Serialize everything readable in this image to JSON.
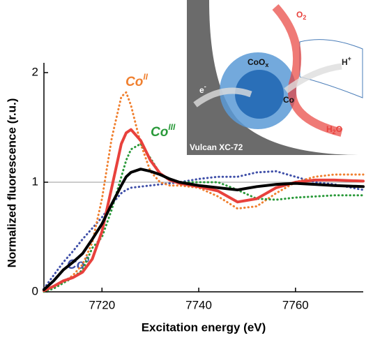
{
  "chart_data": {
    "type": "line",
    "x_label": "Excitation energy (eV)",
    "y_label": "Normalized fluorescence (r.u.)",
    "x": [
      7708,
      7710,
      7712,
      7714,
      7716,
      7718,
      7720,
      7722,
      7724,
      7725,
      7726,
      7728,
      7730,
      7732,
      7734,
      7736,
      7740,
      7744,
      7748,
      7752,
      7756,
      7760,
      7764,
      7768,
      7774
    ],
    "xlim": [
      7708,
      7774
    ],
    "xticks": [
      7720,
      7740,
      7760
    ],
    "ylim": [
      0,
      2
    ],
    "yticks": [
      0,
      1,
      2
    ],
    "ref_line": 1,
    "series": [
      {
        "name": "Co",
        "name_sup": "0",
        "color": "#3f4fa8",
        "dotted": true,
        "values": [
          0.03,
          0.15,
          0.27,
          0.37,
          0.48,
          0.58,
          0.68,
          0.8,
          0.9,
          0.93,
          0.95,
          0.96,
          0.97,
          0.98,
          0.99,
          1.0,
          1.03,
          1.05,
          1.05,
          1.09,
          1.1,
          1.05,
          1.0,
          0.98,
          0.93
        ]
      },
      {
        "name": "Co",
        "name_sup": "II",
        "color": "#f08030",
        "dotted": true,
        "values": [
          0.01,
          0.04,
          0.09,
          0.15,
          0.25,
          0.45,
          0.85,
          1.4,
          1.78,
          1.82,
          1.7,
          1.35,
          1.1,
          1.0,
          0.97,
          0.97,
          0.95,
          0.87,
          0.76,
          0.78,
          0.9,
          1.0,
          1.05,
          1.07,
          1.07
        ]
      },
      {
        "name": "Co",
        "name_sup": "III",
        "color": "#2a9a3a",
        "dotted": true,
        "values": [
          0.0,
          0.03,
          0.08,
          0.13,
          0.2,
          0.4,
          0.5,
          0.75,
          1.05,
          1.2,
          1.3,
          1.35,
          1.22,
          1.08,
          1.02,
          1.0,
          1.0,
          1.0,
          0.93,
          0.85,
          0.84,
          0.86,
          0.87,
          0.88,
          0.88
        ]
      },
      {
        "color": "#e8413c",
        "dotted": false,
        "values": [
          0.01,
          0.05,
          0.1,
          0.13,
          0.18,
          0.3,
          0.55,
          0.95,
          1.35,
          1.45,
          1.48,
          1.38,
          1.2,
          1.08,
          1.02,
          0.99,
          0.96,
          0.92,
          0.82,
          0.85,
          0.95,
          1.0,
          1.02,
          1.02,
          1.01
        ]
      },
      {
        "color": "#000000",
        "dotted": false,
        "values": [
          0.02,
          0.1,
          0.2,
          0.27,
          0.35,
          0.48,
          0.62,
          0.8,
          0.97,
          1.05,
          1.09,
          1.12,
          1.1,
          1.07,
          1.03,
          1.0,
          0.97,
          0.95,
          0.93,
          0.96,
          0.98,
          0.99,
          0.98,
          0.97,
          0.96
        ]
      }
    ]
  },
  "inset": {
    "o2": {
      "text": "O",
      "sub": "2"
    },
    "hplus": {
      "text": "H",
      "sup": "+"
    },
    "coox": {
      "text": "CoO",
      "sub": "x"
    },
    "electron": {
      "text": "e",
      "sup": "-"
    },
    "co": "Co",
    "h2o": {
      "text": "H",
      "sub": "2",
      "tail": "O"
    },
    "support": "Vulcan XC-72"
  }
}
